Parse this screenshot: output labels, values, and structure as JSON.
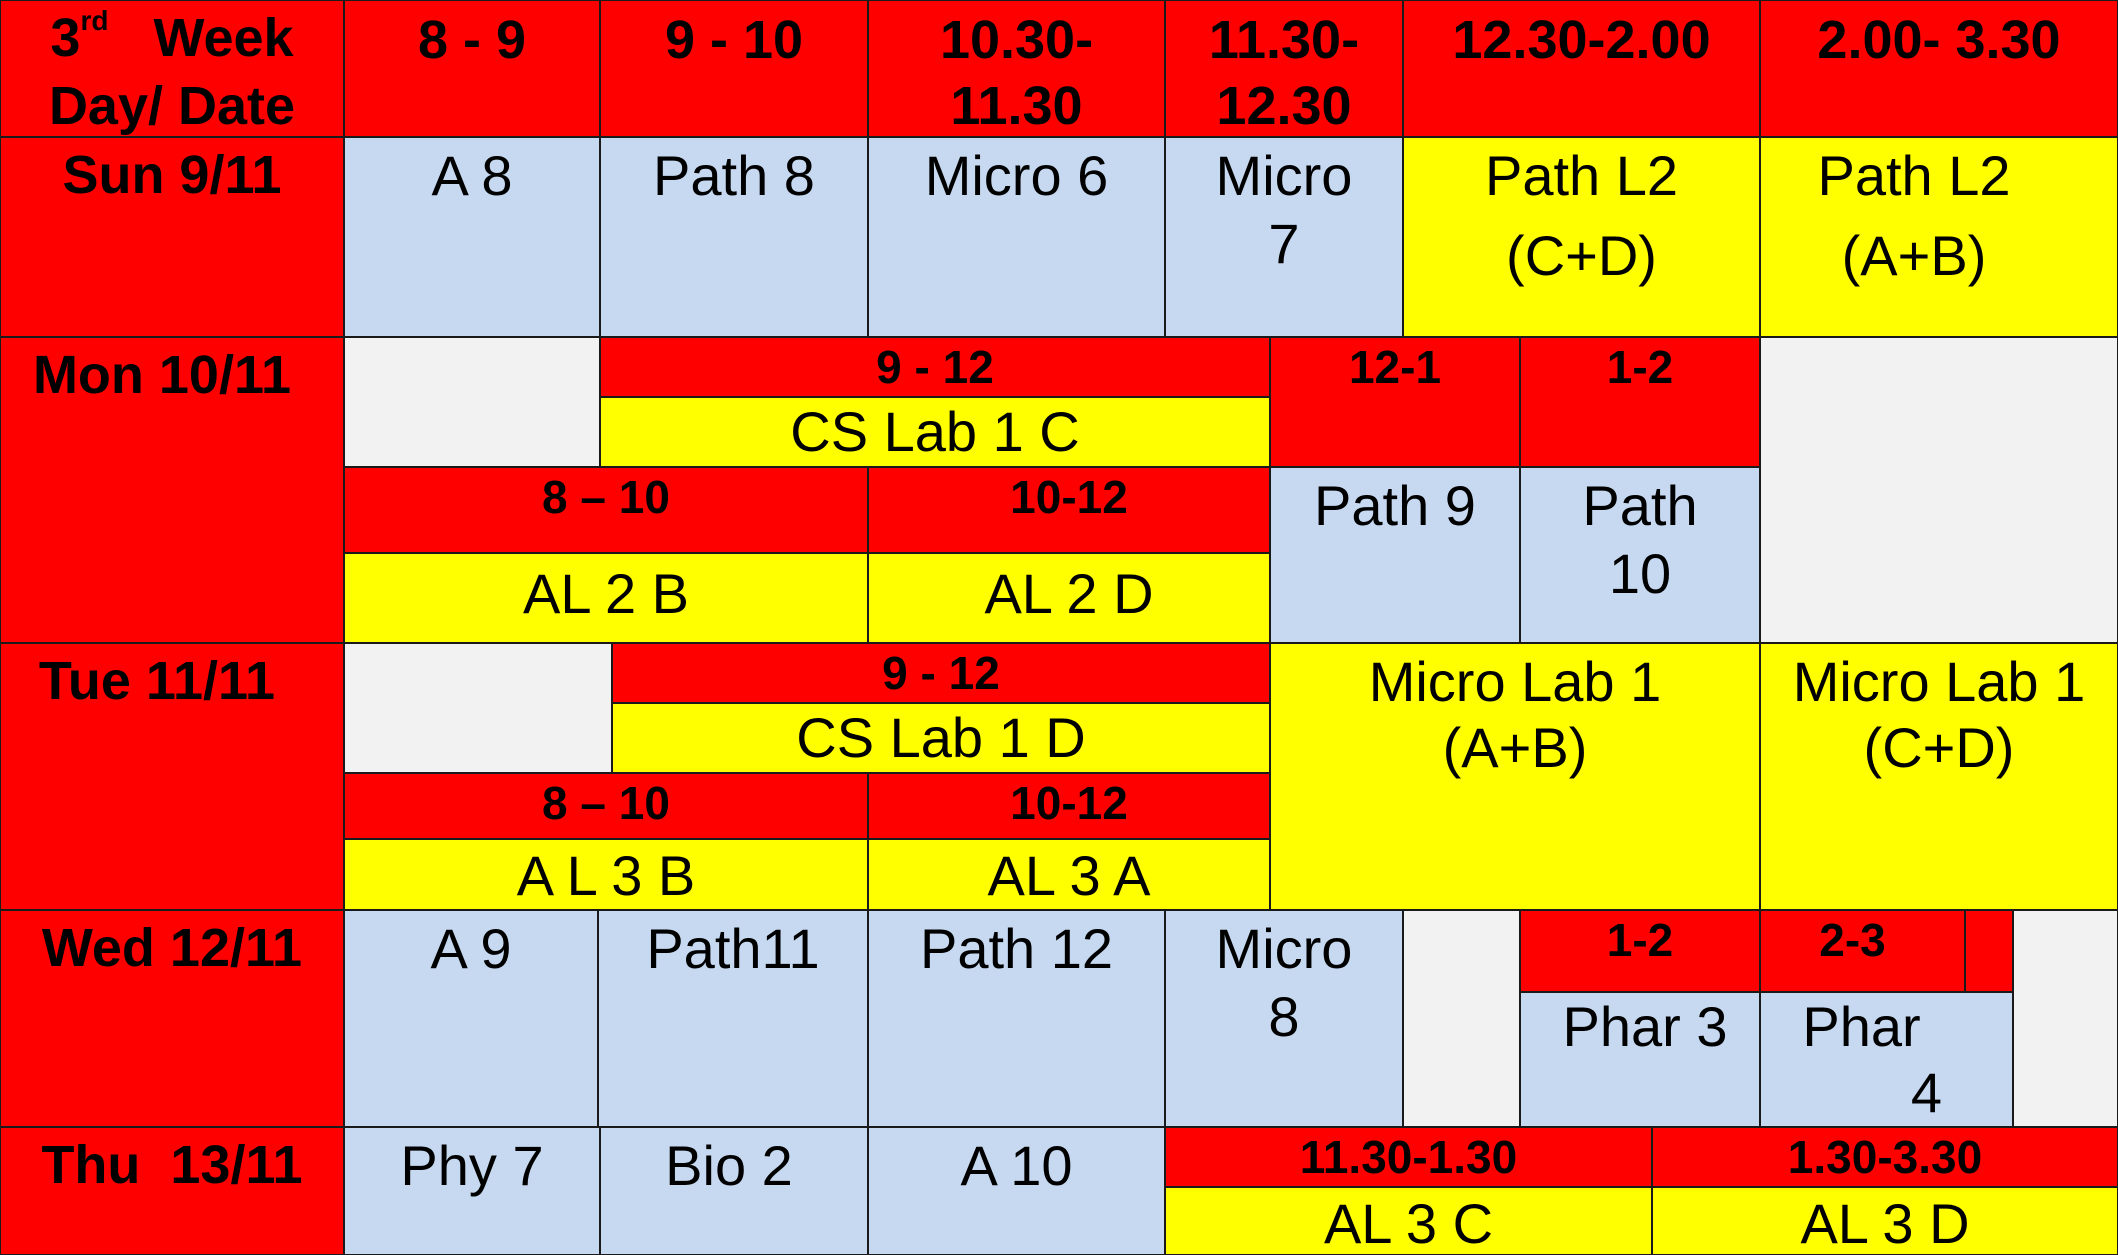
{
  "header": {
    "week_prefix": "3",
    "week_sup": "rd",
    "week_word": "Week",
    "daydate": "Day/ Date",
    "slots": [
      "8 - 9",
      "9 - 10",
      "10.30-",
      "11.30",
      "11.30-",
      "12.30",
      "12.30-2.00",
      "2.00- 3.30"
    ]
  },
  "days": {
    "sun": "Sun 9/11",
    "mon": "Mon 10/11",
    "tue": "Tue 11/11",
    "wed": "Wed 12/11",
    "thu": "Thu  13/11"
  },
  "sun": {
    "a8": "A 8",
    "path8": "Path 8",
    "micro6": "Micro 6",
    "micro7_a": "Micro",
    "micro7_b": "7",
    "pathl2cd_a": "Path L2",
    "pathl2cd_b": "(C+D)",
    "pathl2ab_a": "Path L2",
    "pathl2ab_b": "(A+B)"
  },
  "mon": {
    "t9_12": "9 - 12",
    "t12_1": "12-1",
    "t1_2": "1-2",
    "cslab1c": "CS Lab 1 C",
    "t8_10": "8 – 10",
    "t10_12": "10-12",
    "path9": "Path 9",
    "path10_a": "Path",
    "path10_b": "10",
    "al2b": "AL 2 B",
    "al2d": "AL 2 D"
  },
  "tue": {
    "t9_12": "9 - 12",
    "cslab1d": "CS Lab 1 D",
    "microlab_ab_a": "Micro Lab 1",
    "microlab_ab_b": "(A+B)",
    "microlab_cd_a": "Micro Lab 1",
    "microlab_cd_b": "(C+D)",
    "t8_10": "8 – 10",
    "t10_12": "10-12",
    "al3b": "A L 3 B",
    "al3a": "AL 3 A"
  },
  "wed": {
    "a9": "A 9",
    "path11": "Path11",
    "path12": "Path 12",
    "micro8_a": "Micro",
    "micro8_b": "8",
    "t1_2": "1-2",
    "t2_3": "2-3",
    "phar3": "Phar 3",
    "phar4_a": "Phar",
    "phar4_b": "4"
  },
  "thu": {
    "phy7": "Phy 7",
    "bio2": "Bio 2",
    "a10": "A 10",
    "t1130_130": "11.30-1.30",
    "t130_330": "1.30-3.30",
    "al3c": "AL 3 C",
    "al3d": "AL 3 D"
  },
  "colors": {
    "header_red": "#ff0000",
    "lecture_blue": "#c6d9f0",
    "lab_yellow": "#ffff00",
    "free_gray": "#f2f2f2"
  }
}
